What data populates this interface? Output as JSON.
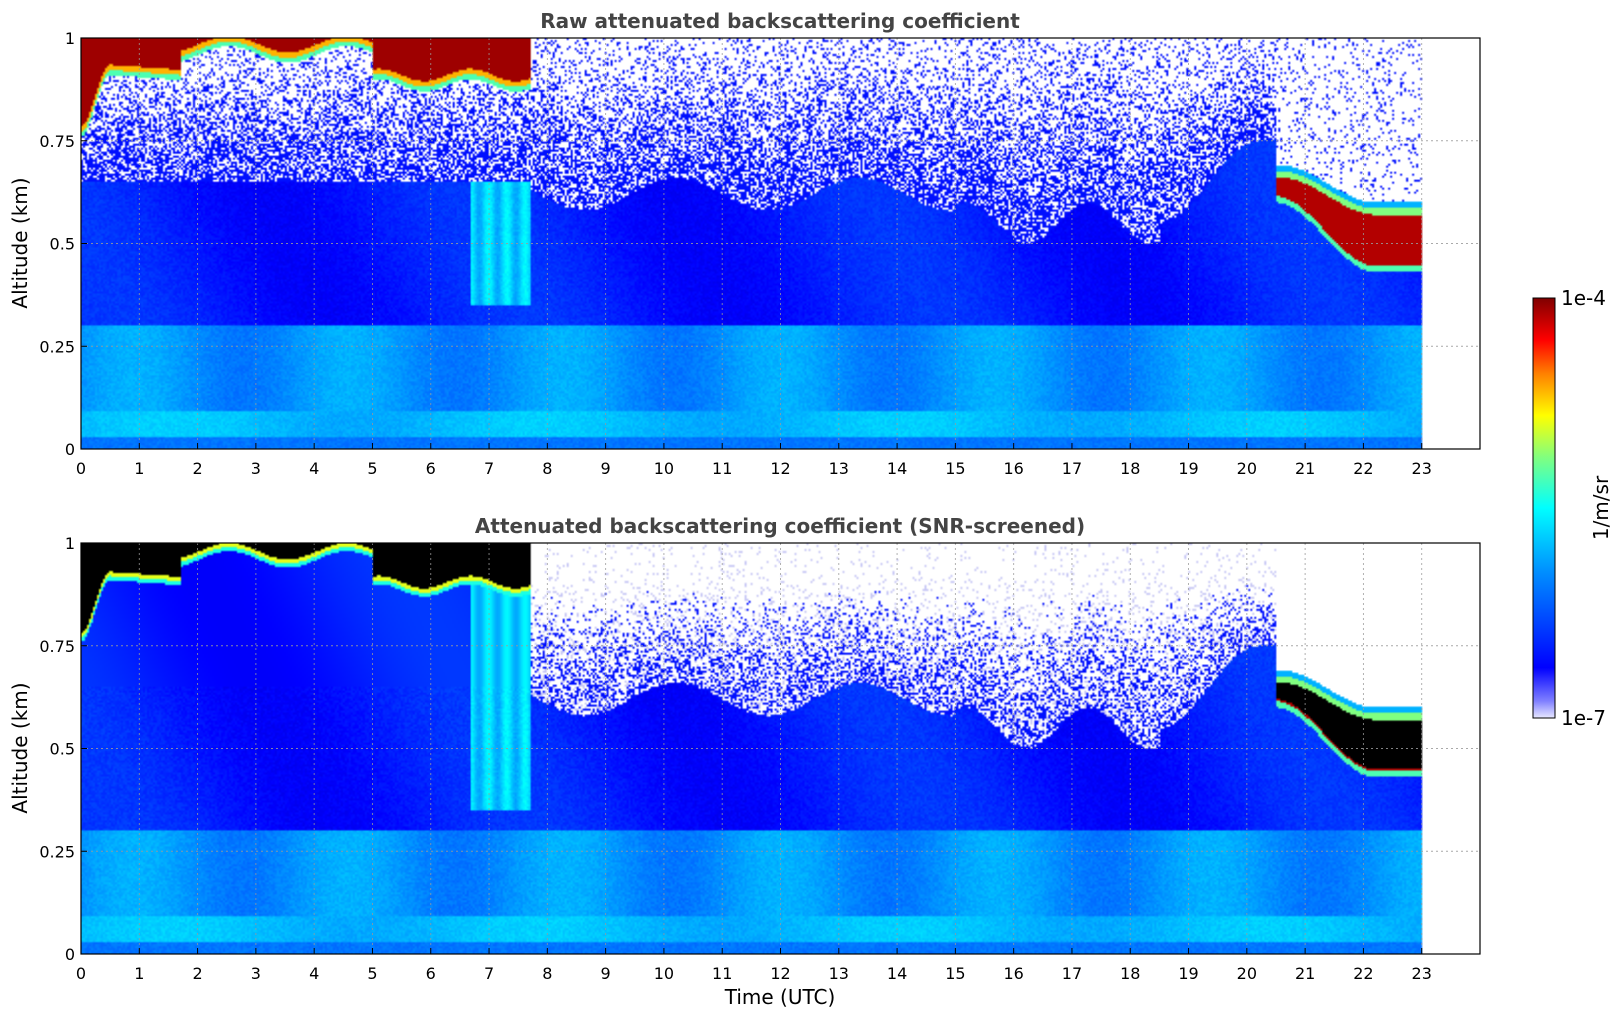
{
  "figure": {
    "xlabel": "Time (UTC)",
    "colorbar": {
      "label": "1/m/sr",
      "max_label": "1e-4",
      "min_label": "1e-7",
      "scale": "log",
      "colormap": "jet"
    }
  },
  "chart_data": [
    {
      "type": "heatmap",
      "title": "Raw attenuated backscattering coefficient",
      "ylabel": "Altitude (km)",
      "xlim": [
        0,
        24
      ],
      "ylim": [
        0,
        1
      ],
      "x_ticks": [
        "0",
        "1",
        "2",
        "3",
        "4",
        "5",
        "6",
        "7",
        "8",
        "9",
        "10",
        "11",
        "12",
        "13",
        "14",
        "15",
        "16",
        "17",
        "18",
        "19",
        "20",
        "21",
        "22",
        "23"
      ],
      "y_ticks": [
        "0",
        "0.25",
        "0.5",
        "0.75",
        "1"
      ],
      "grid": true,
      "data_extent_hours": [
        0,
        23
      ],
      "features": [
        {
          "name": "high-signal layer",
          "time": [
            0,
            7.7
          ],
          "altitude_km": [
            0.85,
            1.0
          ],
          "log10_value": -4
        },
        {
          "name": "high-signal layer",
          "time": [
            20.5,
            23
          ],
          "altitude_km": [
            0.42,
            0.68
          ],
          "log10_value": -4
        },
        {
          "name": "boundary layer",
          "time": [
            0,
            23
          ],
          "altitude_km": [
            0,
            0.3
          ],
          "log10_value": -5.9
        }
      ]
    },
    {
      "type": "heatmap",
      "title": "Attenuated backscattering coefficient (SNR-screened)",
      "ylabel": "Altitude (km)",
      "xlim": [
        0,
        24
      ],
      "ylim": [
        0,
        1
      ],
      "x_ticks": [
        "0",
        "1",
        "2",
        "3",
        "4",
        "5",
        "6",
        "7",
        "8",
        "9",
        "10",
        "11",
        "12",
        "13",
        "14",
        "15",
        "16",
        "17",
        "18",
        "19",
        "20",
        "21",
        "22",
        "23"
      ],
      "y_ticks": [
        "0",
        "0.25",
        "0.5",
        "0.75",
        "1"
      ],
      "grid": true,
      "data_extent_hours": [
        0,
        23
      ],
      "saturated_color": "#000000",
      "features": [
        {
          "name": "saturated layer",
          "time": [
            0,
            7.7
          ],
          "altitude_km": [
            0.85,
            1.0
          ]
        },
        {
          "name": "saturated layer",
          "time": [
            20.5,
            23
          ],
          "altitude_km": [
            0.42,
            0.68
          ]
        }
      ]
    }
  ]
}
